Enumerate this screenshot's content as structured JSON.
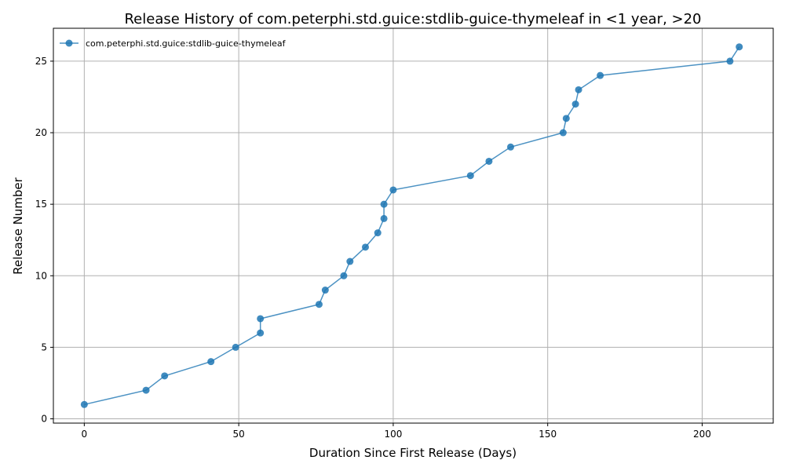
{
  "chart_data": {
    "type": "line",
    "title": "Release History of com.peterphi.std.guice:stdlib-guice-thymeleaf in <1 year, >20",
    "xlabel": "Duration Since First Release (Days)",
    "ylabel": "Release Number",
    "xlim": [
      -10,
      223
    ],
    "ylim": [
      -0.3,
      27.3
    ],
    "xticks": [
      0,
      50,
      100,
      150,
      200
    ],
    "yticks": [
      0,
      5,
      10,
      15,
      20,
      25
    ],
    "grid": true,
    "legend_position": "top-left",
    "series_color": "#1f77b4",
    "series": [
      {
        "name": "com.peterphi.std.guice:stdlib-guice-thymeleaf",
        "x": [
          0,
          20,
          26,
          41,
          49,
          57,
          57,
          76,
          78,
          84,
          86,
          91,
          95,
          97,
          97,
          100,
          125,
          131,
          138,
          155,
          156,
          159,
          160,
          167,
          209,
          212
        ],
        "y": [
          1,
          2,
          3,
          4,
          5,
          6,
          7,
          8,
          9,
          10,
          11,
          12,
          13,
          14,
          15,
          16,
          17,
          18,
          19,
          20,
          21,
          22,
          23,
          24,
          25,
          26
        ]
      }
    ]
  }
}
